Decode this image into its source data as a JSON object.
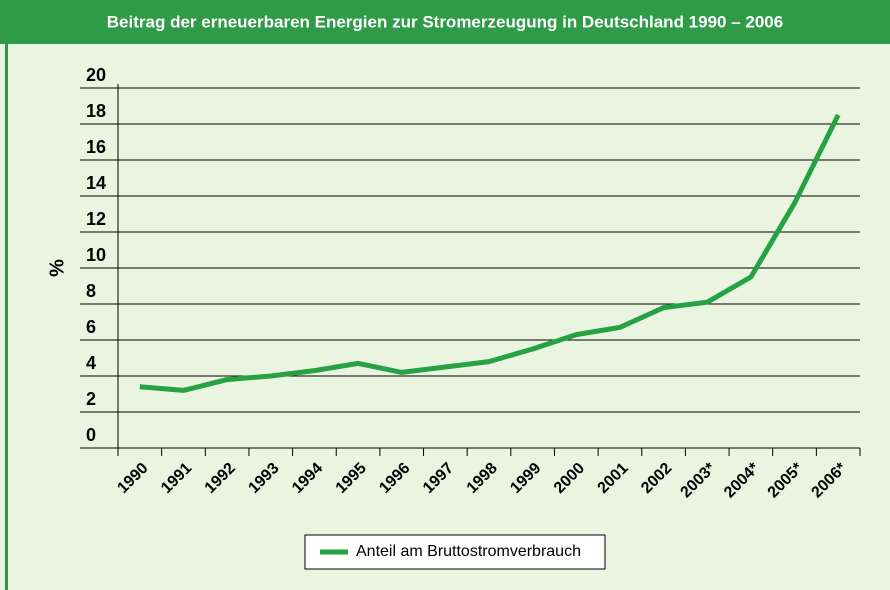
{
  "chart_data": {
    "type": "line",
    "title": "Beitrag der erneuerbaren Energien zur Stromerzeugung in Deutschland 1990 – 2006",
    "y_label": "%",
    "categories": [
      "1990",
      "1991",
      "1992",
      "1993",
      "1994",
      "1995",
      "1996",
      "1997",
      "1998",
      "1999",
      "2000",
      "2001",
      "2002",
      "2003*",
      "2004*",
      "2005*",
      "2006*"
    ],
    "series": [
      {
        "name": "Anteil am Bruttostromverbrauch",
        "color": "#27a243",
        "values": [
          3.4,
          3.2,
          3.8,
          4.0,
          4.3,
          4.7,
          4.2,
          4.5,
          4.8,
          5.5,
          6.3,
          6.7,
          7.8,
          8.1,
          9.5,
          13.6,
          18.5
        ]
      }
    ],
    "ylim": [
      0,
      20
    ],
    "yticks": [
      0,
      2,
      4,
      6,
      8,
      10,
      12,
      14,
      16,
      18,
      20
    ],
    "grid": true
  }
}
